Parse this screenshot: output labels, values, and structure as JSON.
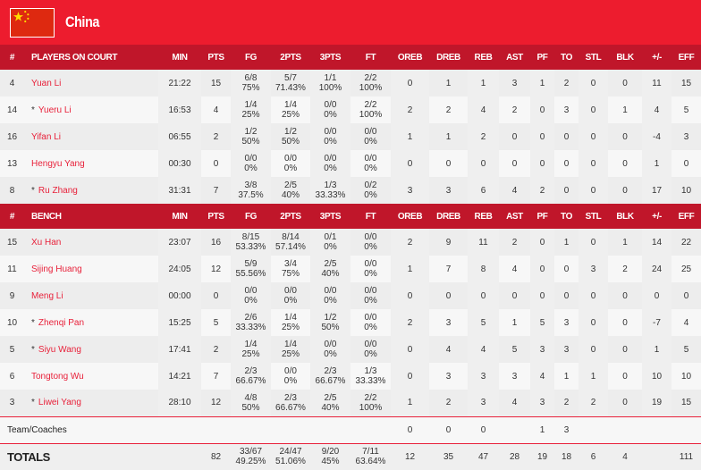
{
  "header": {
    "team": "China",
    "flag": "china-flag"
  },
  "colors": {
    "header_bg": "#ed1c2e",
    "table_head_bg": "#c0162a",
    "player_name": "#e8213a"
  },
  "columns": [
    "#",
    "MIN",
    "PTS",
    "FG",
    "2PTS",
    "3PTS",
    "FT",
    "OREB",
    "DREB",
    "REB",
    "AST",
    "PF",
    "TO",
    "STL",
    "BLK",
    "+/-",
    "EFF"
  ],
  "sections": [
    {
      "label": "PLAYERS ON COURT",
      "players": [
        {
          "no": "4",
          "starter": false,
          "name": "Yuan Li",
          "min": "21:22",
          "pts": "15",
          "fg": [
            "6/8",
            "75%"
          ],
          "p2": [
            "5/7",
            "71.43%"
          ],
          "p3": [
            "1/1",
            "100%"
          ],
          "ft": [
            "2/2",
            "100%"
          ],
          "oreb": "0",
          "dreb": "1",
          "reb": "1",
          "ast": "3",
          "pf": "1",
          "to": "2",
          "stl": "0",
          "blk": "0",
          "pm": "11",
          "eff": "15"
        },
        {
          "no": "14",
          "starter": true,
          "name": "Yueru Li",
          "min": "16:53",
          "pts": "4",
          "fg": [
            "1/4",
            "25%"
          ],
          "p2": [
            "1/4",
            "25%"
          ],
          "p3": [
            "0/0",
            "0%"
          ],
          "ft": [
            "2/2",
            "100%"
          ],
          "oreb": "2",
          "dreb": "2",
          "reb": "4",
          "ast": "2",
          "pf": "0",
          "to": "3",
          "stl": "0",
          "blk": "1",
          "pm": "4",
          "eff": "5"
        },
        {
          "no": "16",
          "starter": false,
          "name": "Yifan Li",
          "min": "06:55",
          "pts": "2",
          "fg": [
            "1/2",
            "50%"
          ],
          "p2": [
            "1/2",
            "50%"
          ],
          "p3": [
            "0/0",
            "0%"
          ],
          "ft": [
            "0/0",
            "0%"
          ],
          "oreb": "1",
          "dreb": "1",
          "reb": "2",
          "ast": "0",
          "pf": "0",
          "to": "0",
          "stl": "0",
          "blk": "0",
          "pm": "-4",
          "eff": "3"
        },
        {
          "no": "13",
          "starter": false,
          "name": "Hengyu Yang",
          "min": "00:30",
          "pts": "0",
          "fg": [
            "0/0",
            "0%"
          ],
          "p2": [
            "0/0",
            "0%"
          ],
          "p3": [
            "0/0",
            "0%"
          ],
          "ft": [
            "0/0",
            "0%"
          ],
          "oreb": "0",
          "dreb": "0",
          "reb": "0",
          "ast": "0",
          "pf": "0",
          "to": "0",
          "stl": "0",
          "blk": "0",
          "pm": "1",
          "eff": "0"
        },
        {
          "no": "8",
          "starter": true,
          "name": "Ru Zhang",
          "min": "31:31",
          "pts": "7",
          "fg": [
            "3/8",
            "37.5%"
          ],
          "p2": [
            "2/5",
            "40%"
          ],
          "p3": [
            "1/3",
            "33.33%"
          ],
          "ft": [
            "0/2",
            "0%"
          ],
          "oreb": "3",
          "dreb": "3",
          "reb": "6",
          "ast": "4",
          "pf": "2",
          "to": "0",
          "stl": "0",
          "blk": "0",
          "pm": "17",
          "eff": "10"
        }
      ]
    },
    {
      "label": "BENCH",
      "players": [
        {
          "no": "15",
          "starter": false,
          "name": "Xu Han",
          "min": "23:07",
          "pts": "16",
          "fg": [
            "8/15",
            "53.33%"
          ],
          "p2": [
            "8/14",
            "57.14%"
          ],
          "p3": [
            "0/1",
            "0%"
          ],
          "ft": [
            "0/0",
            "0%"
          ],
          "oreb": "2",
          "dreb": "9",
          "reb": "11",
          "ast": "2",
          "pf": "0",
          "to": "1",
          "stl": "0",
          "blk": "1",
          "pm": "14",
          "eff": "22"
        },
        {
          "no": "11",
          "starter": false,
          "name": "Sijing Huang",
          "min": "24:05",
          "pts": "12",
          "fg": [
            "5/9",
            "55.56%"
          ],
          "p2": [
            "3/4",
            "75%"
          ],
          "p3": [
            "2/5",
            "40%"
          ],
          "ft": [
            "0/0",
            "0%"
          ],
          "oreb": "1",
          "dreb": "7",
          "reb": "8",
          "ast": "4",
          "pf": "0",
          "to": "0",
          "stl": "3",
          "blk": "2",
          "pm": "24",
          "eff": "25"
        },
        {
          "no": "9",
          "starter": false,
          "name": "Meng Li",
          "min": "00:00",
          "pts": "0",
          "fg": [
            "0/0",
            "0%"
          ],
          "p2": [
            "0/0",
            "0%"
          ],
          "p3": [
            "0/0",
            "0%"
          ],
          "ft": [
            "0/0",
            "0%"
          ],
          "oreb": "0",
          "dreb": "0",
          "reb": "0",
          "ast": "0",
          "pf": "0",
          "to": "0",
          "stl": "0",
          "blk": "0",
          "pm": "0",
          "eff": "0"
        },
        {
          "no": "10",
          "starter": true,
          "name": "Zhenqi Pan",
          "min": "15:25",
          "pts": "5",
          "fg": [
            "2/6",
            "33.33%"
          ],
          "p2": [
            "1/4",
            "25%"
          ],
          "p3": [
            "1/2",
            "50%"
          ],
          "ft": [
            "0/0",
            "0%"
          ],
          "oreb": "2",
          "dreb": "3",
          "reb": "5",
          "ast": "1",
          "pf": "5",
          "to": "3",
          "stl": "0",
          "blk": "0",
          "pm": "-7",
          "eff": "4"
        },
        {
          "no": "5",
          "starter": true,
          "name": "Siyu Wang",
          "min": "17:41",
          "pts": "2",
          "fg": [
            "1/4",
            "25%"
          ],
          "p2": [
            "1/4",
            "25%"
          ],
          "p3": [
            "0/0",
            "0%"
          ],
          "ft": [
            "0/0",
            "0%"
          ],
          "oreb": "0",
          "dreb": "4",
          "reb": "4",
          "ast": "5",
          "pf": "3",
          "to": "3",
          "stl": "0",
          "blk": "0",
          "pm": "1",
          "eff": "5"
        },
        {
          "no": "6",
          "starter": false,
          "name": "Tongtong Wu",
          "min": "14:21",
          "pts": "7",
          "fg": [
            "2/3",
            "66.67%"
          ],
          "p2": [
            "0/0",
            "0%"
          ],
          "p3": [
            "2/3",
            "66.67%"
          ],
          "ft": [
            "1/3",
            "33.33%"
          ],
          "oreb": "0",
          "dreb": "3",
          "reb": "3",
          "ast": "3",
          "pf": "4",
          "to": "1",
          "stl": "1",
          "blk": "0",
          "pm": "10",
          "eff": "10"
        },
        {
          "no": "3",
          "starter": true,
          "name": "Liwei Yang",
          "min": "28:10",
          "pts": "12",
          "fg": [
            "4/8",
            "50%"
          ],
          "p2": [
            "2/3",
            "66.67%"
          ],
          "p3": [
            "2/5",
            "40%"
          ],
          "ft": [
            "2/2",
            "100%"
          ],
          "oreb": "1",
          "dreb": "2",
          "reb": "3",
          "ast": "4",
          "pf": "3",
          "to": "2",
          "stl": "2",
          "blk": "0",
          "pm": "19",
          "eff": "15"
        }
      ]
    }
  ],
  "team_row": {
    "label": "Team/Coaches",
    "oreb": "0",
    "dreb": "0",
    "reb": "0",
    "ast": "",
    "pf": "1",
    "to": "3",
    "stl": "",
    "blk": "",
    "pm": "",
    "eff": ""
  },
  "totals": {
    "label": "TOTALS",
    "min": "",
    "pts": "82",
    "fg": [
      "33/67",
      "49.25%"
    ],
    "p2": [
      "24/47",
      "51.06%"
    ],
    "p3": [
      "9/20",
      "45%"
    ],
    "ft": [
      "7/11",
      "63.64%"
    ],
    "oreb": "12",
    "dreb": "35",
    "reb": "47",
    "ast": "28",
    "pf": "19",
    "to": "18",
    "stl": "6",
    "blk": "4",
    "pm": "",
    "eff": "111"
  },
  "starter_mark": "*"
}
